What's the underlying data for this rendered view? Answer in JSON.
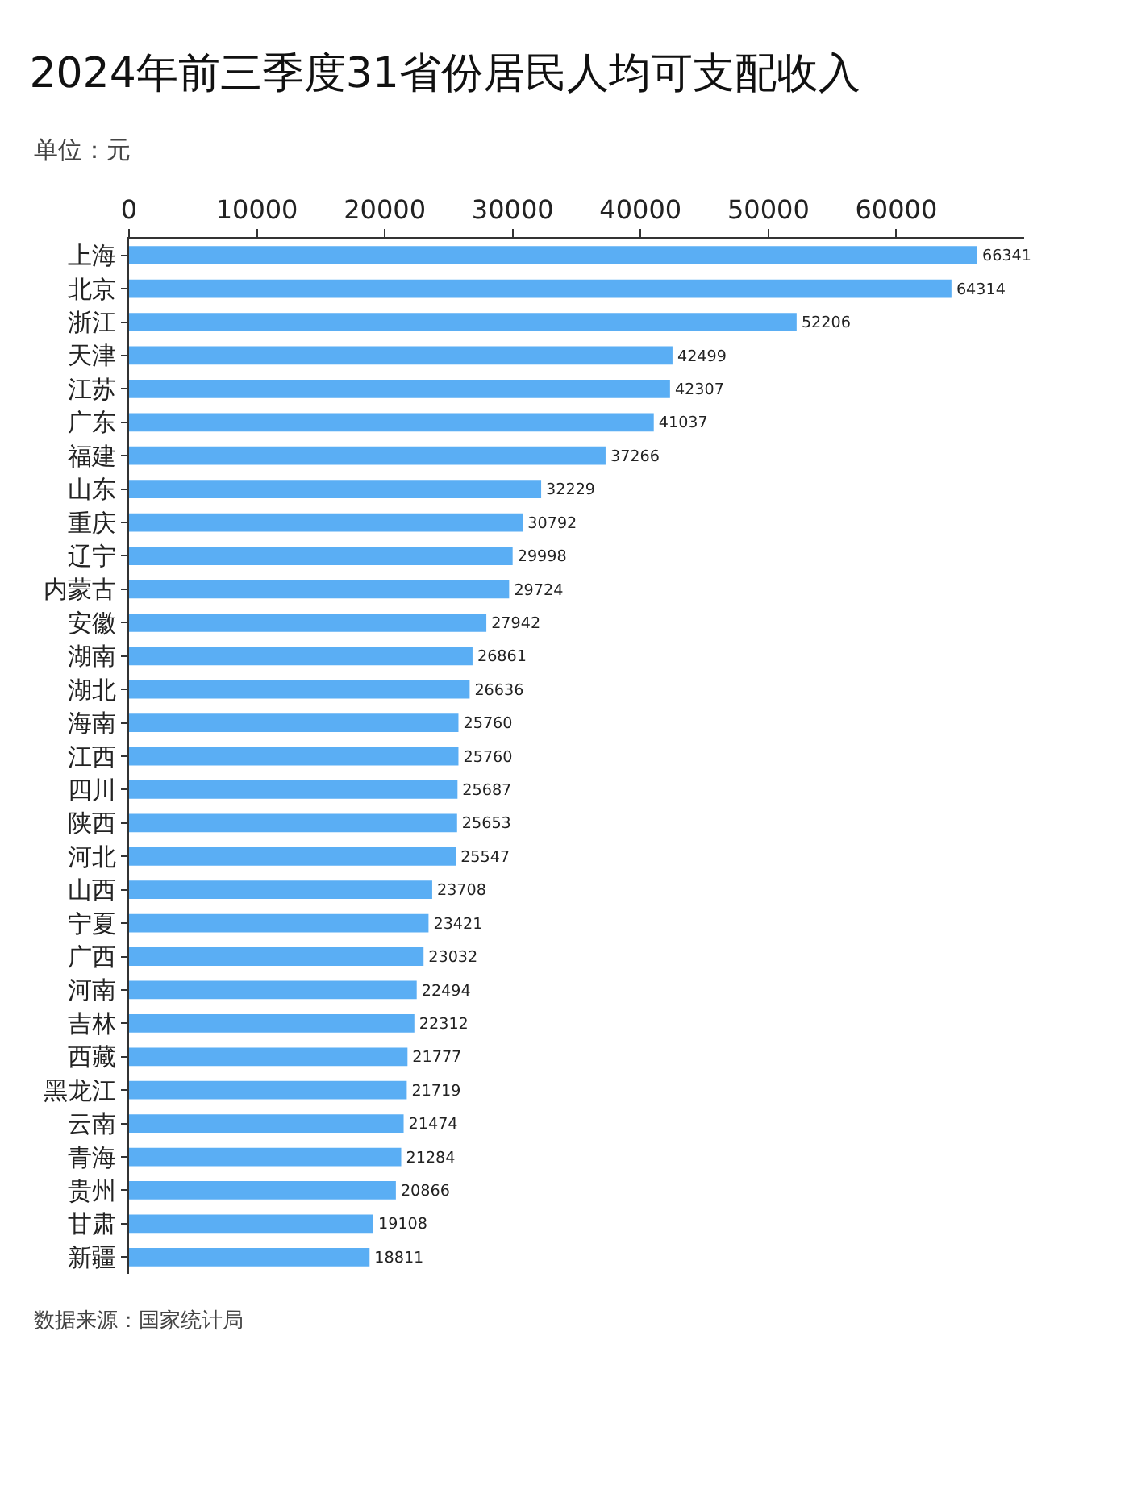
{
  "chart_data": {
    "type": "bar",
    "orientation": "horizontal",
    "title": "2024年前三季度31省份居民人均可支配收入",
    "subtitle": "单位：元",
    "categories": [
      "上海",
      "北京",
      "浙江",
      "天津",
      "江苏",
      "广东",
      "福建",
      "山东",
      "重庆",
      "辽宁",
      "内蒙古",
      "安徽",
      "湖南",
      "湖北",
      "海南",
      "江西",
      "四川",
      "陕西",
      "河北",
      "山西",
      "宁夏",
      "广西",
      "河南",
      "吉林",
      "西藏",
      "黑龙江",
      "云南",
      "青海",
      "贵州",
      "甘肃",
      "新疆"
    ],
    "values": [
      66341,
      64314,
      52206,
      42499,
      42307,
      41037,
      37266,
      32229,
      30792,
      29998,
      29724,
      27942,
      26861,
      26636,
      25760,
      25760,
      25687,
      25653,
      25547,
      23708,
      23421,
      23032,
      22494,
      22312,
      21777,
      21719,
      21474,
      21284,
      20866,
      19108,
      18811
    ],
    "color": "#5aaef4",
    "data_labels": true,
    "xlim": [
      0,
      70000
    ],
    "xticks": [
      0,
      10000,
      20000,
      30000,
      40000,
      50000,
      60000
    ],
    "annotations": [
      "数据来源：国家统计局"
    ]
  }
}
